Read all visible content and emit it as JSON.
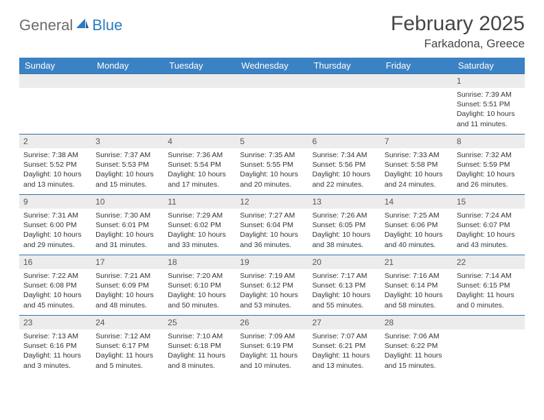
{
  "logo": {
    "part1": "General",
    "part2": "Blue"
  },
  "title": "February 2025",
  "location": "Farkadona, Greece",
  "colors": {
    "header_bg": "#3b82c4",
    "header_text": "#ffffff",
    "row_divider": "#2f6fa8",
    "daynum_bg": "#ececec",
    "logo_gray": "#6b6b6b",
    "logo_blue": "#2b7bbf",
    "title_color": "#454545"
  },
  "weekdays": [
    "Sunday",
    "Monday",
    "Tuesday",
    "Wednesday",
    "Thursday",
    "Friday",
    "Saturday"
  ],
  "first_weekday_index": 6,
  "days": [
    {
      "n": 1,
      "sunrise": "7:39 AM",
      "sunset": "5:51 PM",
      "daylight": "10 hours and 11 minutes."
    },
    {
      "n": 2,
      "sunrise": "7:38 AM",
      "sunset": "5:52 PM",
      "daylight": "10 hours and 13 minutes."
    },
    {
      "n": 3,
      "sunrise": "7:37 AM",
      "sunset": "5:53 PM",
      "daylight": "10 hours and 15 minutes."
    },
    {
      "n": 4,
      "sunrise": "7:36 AM",
      "sunset": "5:54 PM",
      "daylight": "10 hours and 17 minutes."
    },
    {
      "n": 5,
      "sunrise": "7:35 AM",
      "sunset": "5:55 PM",
      "daylight": "10 hours and 20 minutes."
    },
    {
      "n": 6,
      "sunrise": "7:34 AM",
      "sunset": "5:56 PM",
      "daylight": "10 hours and 22 minutes."
    },
    {
      "n": 7,
      "sunrise": "7:33 AM",
      "sunset": "5:58 PM",
      "daylight": "10 hours and 24 minutes."
    },
    {
      "n": 8,
      "sunrise": "7:32 AM",
      "sunset": "5:59 PM",
      "daylight": "10 hours and 26 minutes."
    },
    {
      "n": 9,
      "sunrise": "7:31 AM",
      "sunset": "6:00 PM",
      "daylight": "10 hours and 29 minutes."
    },
    {
      "n": 10,
      "sunrise": "7:30 AM",
      "sunset": "6:01 PM",
      "daylight": "10 hours and 31 minutes."
    },
    {
      "n": 11,
      "sunrise": "7:29 AM",
      "sunset": "6:02 PM",
      "daylight": "10 hours and 33 minutes."
    },
    {
      "n": 12,
      "sunrise": "7:27 AM",
      "sunset": "6:04 PM",
      "daylight": "10 hours and 36 minutes."
    },
    {
      "n": 13,
      "sunrise": "7:26 AM",
      "sunset": "6:05 PM",
      "daylight": "10 hours and 38 minutes."
    },
    {
      "n": 14,
      "sunrise": "7:25 AM",
      "sunset": "6:06 PM",
      "daylight": "10 hours and 40 minutes."
    },
    {
      "n": 15,
      "sunrise": "7:24 AM",
      "sunset": "6:07 PM",
      "daylight": "10 hours and 43 minutes."
    },
    {
      "n": 16,
      "sunrise": "7:22 AM",
      "sunset": "6:08 PM",
      "daylight": "10 hours and 45 minutes."
    },
    {
      "n": 17,
      "sunrise": "7:21 AM",
      "sunset": "6:09 PM",
      "daylight": "10 hours and 48 minutes."
    },
    {
      "n": 18,
      "sunrise": "7:20 AM",
      "sunset": "6:10 PM",
      "daylight": "10 hours and 50 minutes."
    },
    {
      "n": 19,
      "sunrise": "7:19 AM",
      "sunset": "6:12 PM",
      "daylight": "10 hours and 53 minutes."
    },
    {
      "n": 20,
      "sunrise": "7:17 AM",
      "sunset": "6:13 PM",
      "daylight": "10 hours and 55 minutes."
    },
    {
      "n": 21,
      "sunrise": "7:16 AM",
      "sunset": "6:14 PM",
      "daylight": "10 hours and 58 minutes."
    },
    {
      "n": 22,
      "sunrise": "7:14 AM",
      "sunset": "6:15 PM",
      "daylight": "11 hours and 0 minutes."
    },
    {
      "n": 23,
      "sunrise": "7:13 AM",
      "sunset": "6:16 PM",
      "daylight": "11 hours and 3 minutes."
    },
    {
      "n": 24,
      "sunrise": "7:12 AM",
      "sunset": "6:17 PM",
      "daylight": "11 hours and 5 minutes."
    },
    {
      "n": 25,
      "sunrise": "7:10 AM",
      "sunset": "6:18 PM",
      "daylight": "11 hours and 8 minutes."
    },
    {
      "n": 26,
      "sunrise": "7:09 AM",
      "sunset": "6:19 PM",
      "daylight": "11 hours and 10 minutes."
    },
    {
      "n": 27,
      "sunrise": "7:07 AM",
      "sunset": "6:21 PM",
      "daylight": "11 hours and 13 minutes."
    },
    {
      "n": 28,
      "sunrise": "7:06 AM",
      "sunset": "6:22 PM",
      "daylight": "11 hours and 15 minutes."
    }
  ],
  "labels": {
    "sunrise": "Sunrise:",
    "sunset": "Sunset:",
    "daylight": "Daylight:"
  }
}
